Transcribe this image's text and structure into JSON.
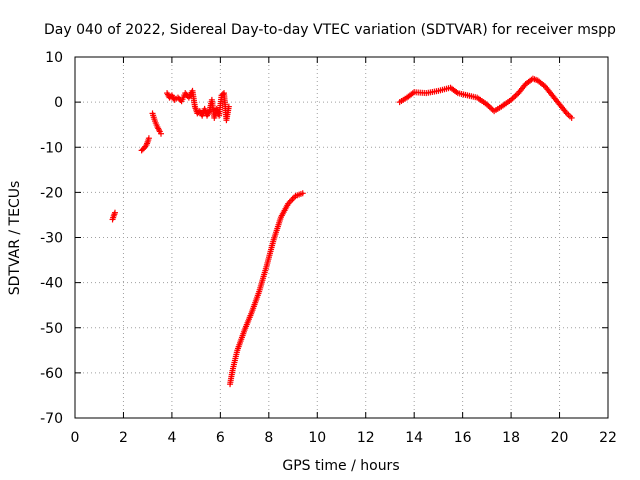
{
  "chart_data": {
    "type": "scatter",
    "title": "Day 040 of 2022, Sidereal Day-to-day VTEC variation (SDTVAR) for receiver mspp",
    "xlabel": "GPS time / hours",
    "ylabel": "SDTVAR / TECUs",
    "xlim": [
      0,
      22
    ],
    "ylim": [
      -70,
      10
    ],
    "xticks": [
      0,
      2,
      4,
      6,
      8,
      10,
      12,
      14,
      16,
      18,
      20,
      22
    ],
    "yticks": [
      -70,
      -60,
      -50,
      -40,
      -30,
      -20,
      -10,
      0,
      10
    ],
    "grid": true,
    "marker": "plus",
    "color": "#ff0000",
    "series": [
      {
        "name": "SDTVAR",
        "segments": [
          {
            "x": [
              1.55,
              1.6,
              1.65
            ],
            "y": [
              -26,
              -25.2,
              -24.5
            ]
          },
          {
            "x": [
              2.75,
              2.85,
              2.95,
              3.0,
              3.05
            ],
            "y": [
              -10.7,
              -10.2,
              -9.5,
              -8.8,
              -8.0
            ]
          },
          {
            "x": [
              3.2,
              3.3,
              3.4,
              3.5,
              3.55
            ],
            "y": [
              -2.5,
              -4.2,
              -5.5,
              -6.5,
              -7.0
            ]
          },
          {
            "x": [
              3.8,
              3.9,
              4.0,
              4.1,
              4.25,
              4.4,
              4.55,
              4.7,
              4.85,
              4.95,
              5.05,
              5.15,
              5.25,
              5.35,
              5.45,
              5.55,
              5.65,
              5.75,
              5.85,
              5.95,
              6.05,
              6.15,
              6.25,
              6.35
            ],
            "y": [
              2.0,
              1.0,
              1.5,
              0.5,
              1.0,
              0.2,
              2.0,
              1.0,
              2.5,
              -1.0,
              -2.5,
              -2.0,
              -3.0,
              -1.5,
              -3.0,
              -2.0,
              0.5,
              -3.5,
              -1.5,
              -3.0,
              1.5,
              2.0,
              -4.0,
              -1.0
            ]
          },
          {
            "x": [
              6.4,
              6.5,
              6.7,
              7.0,
              7.3,
              7.6,
              7.9,
              8.2,
              8.5,
              8.8,
              9.1,
              9.4
            ],
            "y": [
              -62.5,
              -59.5,
              -55.0,
              -50.5,
              -46.5,
              -42.0,
              -36.5,
              -30.5,
              -25.5,
              -22.5,
              -20.8,
              -20.2
            ]
          },
          {
            "x": [
              13.4,
              13.7,
              14.0,
              14.5,
              15.0,
              15.5,
              15.8,
              16.2,
              16.6,
              17.0,
              17.3,
              17.6,
              18.0,
              18.3,
              18.6,
              18.9,
              19.1,
              19.4,
              19.7,
              20.0,
              20.3,
              20.5
            ],
            "y": [
              0.0,
              1.0,
              2.2,
              2.0,
              2.5,
              3.2,
              2.0,
              1.5,
              1.0,
              -0.5,
              -2.0,
              -1.0,
              0.5,
              2.0,
              4.0,
              5.2,
              4.8,
              3.5,
              1.5,
              -0.5,
              -2.5,
              -3.5
            ]
          }
        ]
      }
    ]
  }
}
